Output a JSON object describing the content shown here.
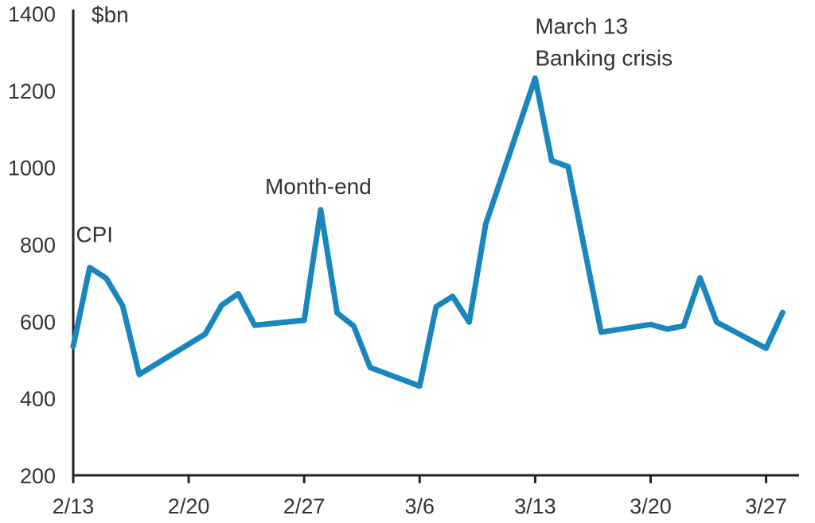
{
  "chart_data": {
    "type": "line",
    "title": "",
    "xlabel": "",
    "ylabel": "",
    "unit": "$bn",
    "ylim": [
      200,
      1400
    ],
    "yticks": [
      200,
      400,
      600,
      800,
      1000,
      1200,
      1400
    ],
    "xlim": [
      "2023-02-13",
      "2023-03-29"
    ],
    "xticks": [
      {
        "date": "2023-02-13",
        "label": "2/13"
      },
      {
        "date": "2023-02-20",
        "label": "2/20"
      },
      {
        "date": "2023-02-27",
        "label": "2/27"
      },
      {
        "date": "2023-03-06",
        "label": "3/6"
      },
      {
        "date": "2023-03-13",
        "label": "3/13"
      },
      {
        "date": "2023-03-20",
        "label": "3/20"
      },
      {
        "date": "2023-03-27",
        "label": "3/27"
      }
    ],
    "grid": false,
    "legend": "none",
    "series": [
      {
        "color": "#1a86be",
        "points": [
          {
            "date": "2023-02-13",
            "value": 535
          },
          {
            "date": "2023-02-14",
            "value": 740
          },
          {
            "date": "2023-02-15",
            "value": 712
          },
          {
            "date": "2023-02-16",
            "value": 640
          },
          {
            "date": "2023-02-17",
            "value": 462
          },
          {
            "date": "2023-02-21",
            "value": 567
          },
          {
            "date": "2023-02-22",
            "value": 642
          },
          {
            "date": "2023-02-23",
            "value": 672
          },
          {
            "date": "2023-02-24",
            "value": 590
          },
          {
            "date": "2023-02-27",
            "value": 603
          },
          {
            "date": "2023-02-28",
            "value": 890
          },
          {
            "date": "2023-03-01",
            "value": 622
          },
          {
            "date": "2023-03-02",
            "value": 588
          },
          {
            "date": "2023-03-03",
            "value": 480
          },
          {
            "date": "2023-03-06",
            "value": 432
          },
          {
            "date": "2023-03-07",
            "value": 638
          },
          {
            "date": "2023-03-08",
            "value": 665
          },
          {
            "date": "2023-03-09",
            "value": 598
          },
          {
            "date": "2023-03-10",
            "value": 852
          },
          {
            "date": "2023-03-13",
            "value": 1232
          },
          {
            "date": "2023-03-14",
            "value": 1018
          },
          {
            "date": "2023-03-15",
            "value": 1002
          },
          {
            "date": "2023-03-17",
            "value": 572
          },
          {
            "date": "2023-03-20",
            "value": 592
          },
          {
            "date": "2023-03-21",
            "value": 580
          },
          {
            "date": "2023-03-22",
            "value": 588
          },
          {
            "date": "2023-03-23",
            "value": 713
          },
          {
            "date": "2023-03-24",
            "value": 598
          },
          {
            "date": "2023-03-27",
            "value": 530
          },
          {
            "date": "2023-03-28",
            "value": 623
          }
        ]
      }
    ],
    "annotations": [
      {
        "text": "CPI",
        "date": "2023-02-14",
        "value": 740
      },
      {
        "text": "Month-end",
        "date": "2023-02-28",
        "value": 890
      },
      {
        "text": "March 13",
        "date": "2023-03-13",
        "value": 1232
      },
      {
        "text": "Banking crisis",
        "date": "2023-03-13",
        "value": 1232
      }
    ]
  }
}
